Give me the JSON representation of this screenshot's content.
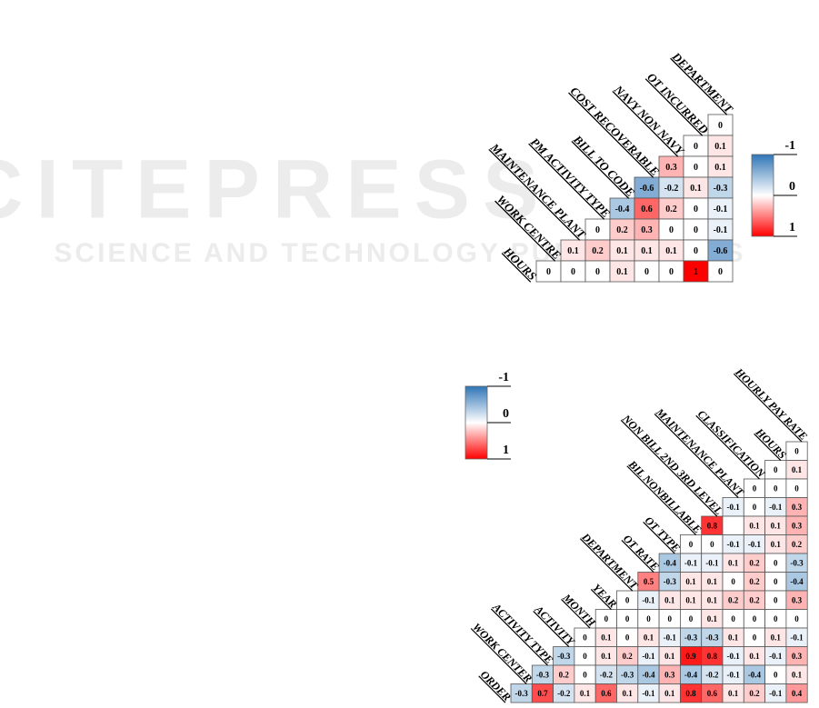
{
  "watermark": {
    "title": "SCITEPRESS",
    "subtitle": "SCIENCE AND TECHNOLOGY PUBLICATIONS"
  },
  "chart_data": [
    {
      "type": "heatmap",
      "labels": [
        "DEPARTMENT",
        "OT INCURRED",
        "NAVY NON NAVY",
        "COST RECOVERABLE",
        "BILL TO CODE",
        "PM ACTIVITY TYPE",
        "MAINTENANCE PLANT",
        "WORK CENTRE",
        "HOURS"
      ],
      "values": [
        [
          0
        ],
        [
          0,
          0.1
        ],
        [
          0.3,
          0,
          0.1
        ],
        [
          -0.6,
          -0.2,
          0.1,
          -0.3
        ],
        [
          -0.4,
          0.6,
          0.2,
          0,
          -0.1
        ],
        [
          0,
          0.2,
          0.3,
          0,
          0,
          -0.1
        ],
        [
          0.1,
          0.2,
          0.1,
          0.1,
          0.1,
          0,
          -0.6
        ],
        [
          0,
          0,
          0,
          0.1,
          0,
          0,
          1,
          0
        ]
      ],
      "zlim": [
        -1,
        1
      ],
      "zticks": [
        -1,
        0,
        1
      ],
      "colors": {
        "low": "#2e75b6",
        "mid": "#ffffff",
        "high": "#ff0000"
      }
    },
    {
      "type": "heatmap",
      "labels": [
        "HOURLY PAY RATE",
        "HOURS",
        "CLASSIFICATION",
        "MAINTENANCE PLANT",
        "NON BILL 2ND 3RD LEVEL",
        "BIL NONBILLABLE",
        "OT TYPE",
        "OT RATE",
        "DEPARTMENT",
        "YEAR",
        "MONTH",
        "ACTIVITY",
        "ACTIVITY TYPE",
        "WORK CENTER",
        "ORDER"
      ],
      "values": [
        [
          0
        ],
        [
          0,
          0.1
        ],
        [
          0,
          0,
          0
        ],
        [
          -0.1,
          0,
          -0.1,
          0.3
        ],
        [
          0.8,
          null,
          0.1,
          0.1,
          0.3
        ],
        [
          0,
          0,
          -0.1,
          -0.1,
          0.1,
          0.2
        ],
        [
          -0.4,
          -0.1,
          -0.1,
          0.1,
          0.2,
          0,
          -0.3
        ],
        [
          0.5,
          -0.3,
          0.1,
          0.1,
          0,
          0.2,
          0,
          -0.4
        ],
        [
          0,
          -0.1,
          0.1,
          0.1,
          0.1,
          0.2,
          0.2,
          0,
          0.3
        ],
        [
          0,
          0,
          0,
          0,
          0,
          0.1,
          0,
          0,
          0,
          0
        ],
        [
          0,
          0.1,
          0,
          0.1,
          -0.1,
          -0.3,
          -0.3,
          0.1,
          0,
          0.1,
          -0.1
        ],
        [
          -0.3,
          0,
          0.1,
          0.2,
          -0.1,
          0.1,
          0.9,
          0.8,
          -0.1,
          0.1,
          -0.1,
          0.3
        ],
        [
          -0.3,
          0.2,
          0,
          -0.2,
          -0.3,
          -0.4,
          0.3,
          -0.4,
          -0.2,
          -0.1,
          -0.4,
          0,
          0.1
        ],
        [
          -0.3,
          0.7,
          -0.2,
          0.1,
          0.6,
          0.1,
          -0.1,
          0.1,
          0.8,
          0.6,
          0.1,
          0.2,
          -0.1,
          0.4
        ]
      ],
      "zlim": [
        -1,
        1
      ],
      "zticks": [
        -1,
        0,
        1
      ],
      "colors": {
        "low": "#2e75b6",
        "mid": "#ffffff",
        "high": "#ff0000"
      }
    }
  ]
}
